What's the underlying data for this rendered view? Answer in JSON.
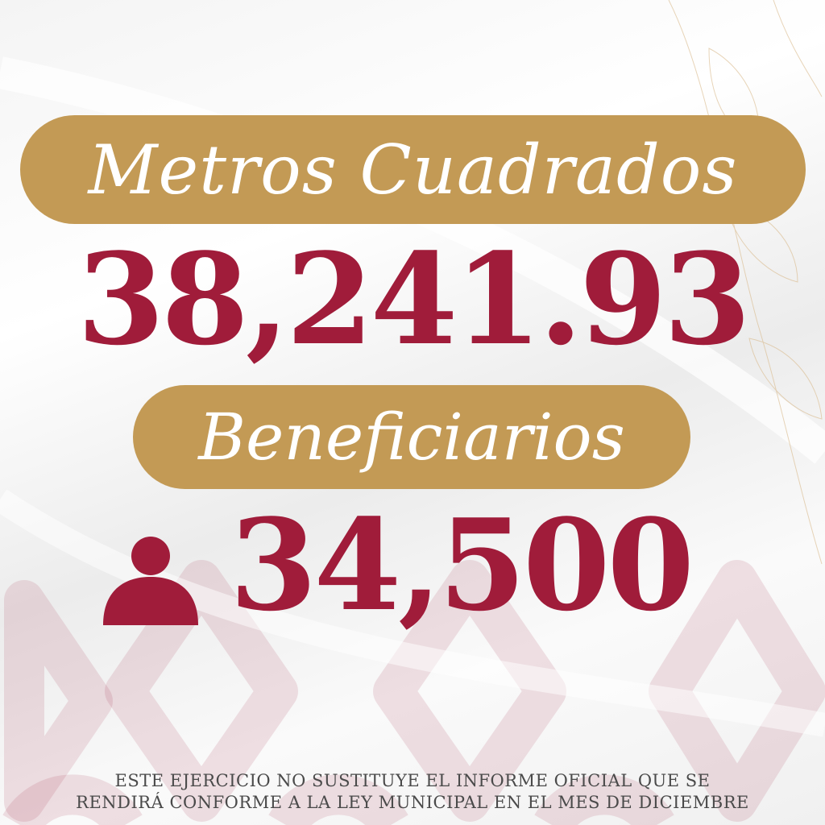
{
  "colors": {
    "gold": "#c39a55",
    "crimson": "#a01c3a",
    "pattern_pink": "#ecd3d8"
  },
  "header": {
    "title": "Metros Cuadrados"
  },
  "area": {
    "value": "38,241.93"
  },
  "beneficiaries": {
    "label": "Beneficiarios",
    "value": "34,500",
    "icon": "person-icon"
  },
  "footer": {
    "line1": "ESTE EJERCICIO NO SUSTITUYE EL INFORME OFICIAL QUE SE",
    "line2": "RENDIRÁ CONFORME A LA LEY MUNICIPAL EN EL MES DE DICIEMBRE"
  }
}
